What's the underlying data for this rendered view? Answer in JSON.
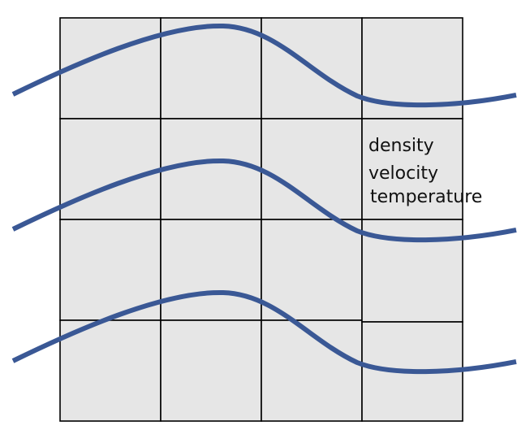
{
  "grid": {
    "rows": 4,
    "cols": 4,
    "cell_fill": "#e6e6e6",
    "line_color": "#000000"
  },
  "curves": {
    "color": "#3a5895",
    "count": 3
  },
  "cell_labels": [
    "density",
    "velocity",
    "temperature"
  ]
}
